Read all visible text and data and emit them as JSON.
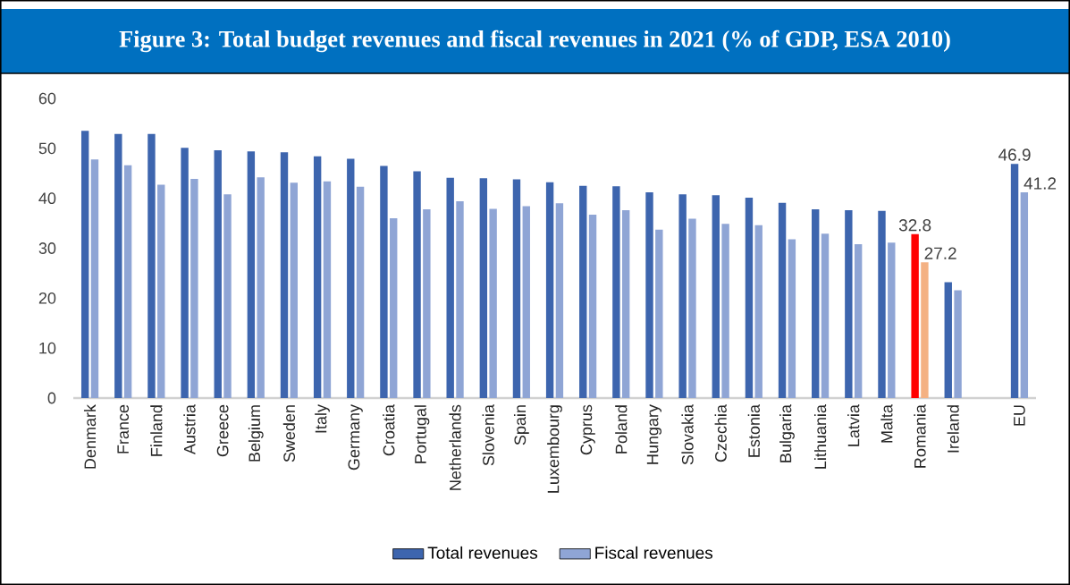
{
  "chart_data": {
    "type": "bar",
    "title": "Figure 3: Total budget revenues and fiscal revenues in 2021 (% of GDP, ESA 2010)",
    "categories": [
      "Denmark",
      "France",
      "Finland",
      "Austria",
      "Greece",
      "Belgium",
      "Sweden",
      "Italy",
      "Germany",
      "Croatia",
      "Portugal",
      "Netherlands",
      "Slovenia",
      "Spain",
      "Luxembourg",
      "Cyprus",
      "Poland",
      "Hungary",
      "Slovakia",
      "Czechia",
      "Estonia",
      "Bulgaria",
      "Lithuania",
      "Latvia",
      "Malta",
      "Romania",
      "Ireland",
      null,
      "EU"
    ],
    "series": [
      {
        "name": "Total revenues",
        "color": "#3d65ae",
        "values": [
          53.5,
          52.9,
          52.9,
          50.1,
          49.6,
          49.4,
          49.2,
          48.4,
          47.9,
          46.5,
          45.4,
          44.1,
          44.0,
          43.8,
          43.2,
          42.5,
          42.4,
          41.2,
          40.8,
          40.6,
          40.1,
          39.1,
          37.8,
          37.6,
          37.5,
          32.8,
          23.2,
          null,
          46.9
        ],
        "colors": [
          "#3d65ae",
          "#3d65ae",
          "#3d65ae",
          "#3d65ae",
          "#3d65ae",
          "#3d65ae",
          "#3d65ae",
          "#3d65ae",
          "#3d65ae",
          "#3d65ae",
          "#3d65ae",
          "#3d65ae",
          "#3d65ae",
          "#3d65ae",
          "#3d65ae",
          "#3d65ae",
          "#3d65ae",
          "#3d65ae",
          "#3d65ae",
          "#3d65ae",
          "#3d65ae",
          "#3d65ae",
          "#3d65ae",
          "#3d65ae",
          "#3d65ae",
          "#ff0000",
          "#3d65ae",
          null,
          "#3d65ae"
        ],
        "value_labels": [
          null,
          null,
          null,
          null,
          null,
          null,
          null,
          null,
          null,
          null,
          null,
          null,
          null,
          null,
          null,
          null,
          null,
          null,
          null,
          null,
          null,
          null,
          null,
          null,
          null,
          "32.8",
          null,
          null,
          "46.9"
        ]
      },
      {
        "name": "Fiscal revenues",
        "color": "#8fa5d5",
        "values": [
          47.8,
          46.6,
          42.7,
          43.9,
          40.8,
          44.2,
          43.1,
          43.4,
          42.3,
          36.0,
          37.8,
          39.4,
          37.9,
          38.4,
          39.0,
          36.7,
          37.6,
          33.7,
          35.9,
          34.9,
          34.6,
          31.8,
          32.9,
          30.8,
          31.1,
          27.2,
          21.6,
          null,
          41.2
        ],
        "colors": [
          "#8fa5d5",
          "#8fa5d5",
          "#8fa5d5",
          "#8fa5d5",
          "#8fa5d5",
          "#8fa5d5",
          "#8fa5d5",
          "#8fa5d5",
          "#8fa5d5",
          "#8fa5d5",
          "#8fa5d5",
          "#8fa5d5",
          "#8fa5d5",
          "#8fa5d5",
          "#8fa5d5",
          "#8fa5d5",
          "#8fa5d5",
          "#8fa5d5",
          "#8fa5d5",
          "#8fa5d5",
          "#8fa5d5",
          "#8fa5d5",
          "#8fa5d5",
          "#8fa5d5",
          "#8fa5d5",
          "#f4b183",
          "#8fa5d5",
          null,
          "#8fa5d5"
        ],
        "value_labels": [
          null,
          null,
          null,
          null,
          null,
          null,
          null,
          null,
          null,
          null,
          null,
          null,
          null,
          null,
          null,
          null,
          null,
          null,
          null,
          null,
          null,
          null,
          null,
          null,
          null,
          "27.2",
          null,
          null,
          "41.2"
        ]
      }
    ],
    "ylim": [
      0,
      60
    ],
    "yticks": [
      0,
      10,
      20,
      30,
      40,
      50,
      60
    ],
    "legend": "bottom"
  }
}
